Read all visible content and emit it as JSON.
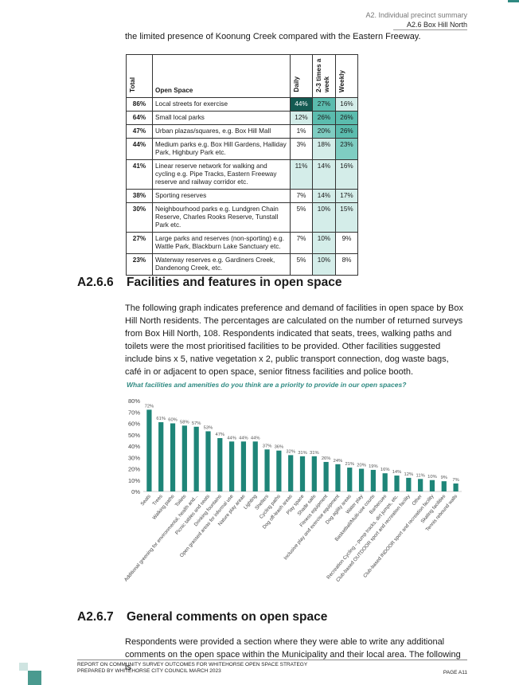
{
  "header": {
    "line1": "A2. Individual precinct summary",
    "line2": "A2.6 Box Hill North"
  },
  "intro_line": "the limited presence of Koonung Creek compared with the Eastern Freeway.",
  "table": {
    "headers": {
      "total": "Total",
      "open_space": "Open Space",
      "daily": "Daily",
      "two_three": "2-3 times a week",
      "weekly": "Weekly"
    },
    "rows": [
      {
        "total": "86%",
        "name": "Local streets for exercise",
        "daily": "44%",
        "two_three": "27%",
        "weekly": "16%"
      },
      {
        "total": "64%",
        "name": "Small local parks",
        "daily": "12%",
        "two_three": "26%",
        "weekly": "26%"
      },
      {
        "total": "47%",
        "name": "Urban plazas/squares, e.g. Box Hill Mall",
        "daily": "1%",
        "two_three": "20%",
        "weekly": "26%"
      },
      {
        "total": "44%",
        "name": "Medium parks e.g. Box Hill Gardens, Halliday Park, Highbury Park etc.",
        "daily": "3%",
        "two_three": "18%",
        "weekly": "23%"
      },
      {
        "total": "41%",
        "name": "Linear reserve network for walking and cycling e.g. Pipe Tracks, Eastern Freeway reserve and railway corridor etc.",
        "daily": "11%",
        "two_three": "14%",
        "weekly": "16%"
      },
      {
        "total": "38%",
        "name": "Sporting reserves",
        "daily": "7%",
        "two_three": "14%",
        "weekly": "17%"
      },
      {
        "total": "30%",
        "name": "Neighbourhood parks e.g. Lundgren Chain Reserve, Charles Rooks Reserve, Tunstall Park etc.",
        "daily": "5%",
        "two_three": "10%",
        "weekly": "15%"
      },
      {
        "total": "27%",
        "name": "Large parks and reserves (non-sporting) e.g. Wattle Park, Blackburn Lake Sanctuary etc.",
        "daily": "7%",
        "two_three": "10%",
        "weekly": "9%"
      },
      {
        "total": "23%",
        "name": "Waterway reserves e.g. Gardiners Creek, Dandenong Creek, etc.",
        "daily": "5%",
        "two_three": "10%",
        "weekly": "8%"
      }
    ],
    "shade_colors": [
      "#ffffff",
      "#d4ede9",
      "#7fcdc2",
      "#5bbcae",
      "#145a52"
    ]
  },
  "section_266": {
    "number": "A2.6.6",
    "title": "Facilities and features in open space"
  },
  "para_266": "The following graph indicates preference and demand of facilities in open space by Box Hill North residents. The percentages are calculated on the number of returned surveys from Box Hill North, 108. Respondents indicated that seats, trees, walking paths and toilets were the most prioritised facilities to be provided. Other facilities suggested include bins x 5, native vegetation x 2, public transport connection, dog waste bags, café in or adjacent to open space, senior fitness facilities and police booth.",
  "chart_caption": "What facilities and amenities do you think are a priority to provide in our open spaces?",
  "chart_data": {
    "type": "bar",
    "categories": [
      "Seats",
      "Trees",
      "Walking paths",
      "Toilets",
      "Additional greening for environmental, health and...",
      "Picnic tables and seats",
      "Drinking fountains",
      "Open grassed areas for informal use",
      "Nature play areas",
      "Lighting",
      "Shelters",
      "Cycling paths",
      "Dog off-leash areas",
      "Play space",
      "Shade sails",
      "Fitness equipment",
      "Inclusive play and exercise equipment",
      "Dog agility areas",
      "Water play",
      "Basketball/Multi-use courts",
      "Barbecues",
      "Recreation Cycling – pump tracks, dirt jumps, etc.",
      "Club-based OUTDOOR sport and recreation facility",
      "Other",
      "Club-based INDOOR sport and recreation facility",
      "Skating facilities",
      "Tennis rebound walls"
    ],
    "values": [
      72,
      61,
      60,
      58,
      57,
      53,
      47,
      44,
      44,
      44,
      37,
      36,
      32,
      31,
      31,
      26,
      24,
      21,
      20,
      19,
      16,
      14,
      12,
      11,
      10,
      9,
      7
    ],
    "value_labels": [
      "72%",
      "61%",
      "60%",
      "58%",
      "57%",
      "53%",
      "47%",
      "44%",
      "44%",
      "44%",
      "37%",
      "36%",
      "32%",
      "31%",
      "31%",
      "26%",
      "24%",
      "21%",
      "20%",
      "19%",
      "16%",
      "14%",
      "12%",
      "11%",
      "10%",
      "9%",
      "7%"
    ],
    "yticks": [
      "0%",
      "10%",
      "20%",
      "30%",
      "40%",
      "50%",
      "60%",
      "70%",
      "80%"
    ],
    "ylim": [
      0,
      80
    ],
    "bar_color": "#1e8578",
    "title": "",
    "xlabel": "",
    "ylabel": ""
  },
  "section_267": {
    "number": "A2.6.7",
    "title": "General comments on open space"
  },
  "para_267": "Respondents were provided a section where they were able to write any additional comments on the open space within the Municipality and their local area. The following is",
  "footer": {
    "line1": "REPORT ON COMMUNITY SURVEY OUTCOMES FOR WHITEHORSE OPEN SPACE STRATEGY",
    "line2": "PREPARED BY WHITEHORSE CITY COUNCIL MARCH 2023",
    "page": "PAGE A11"
  }
}
